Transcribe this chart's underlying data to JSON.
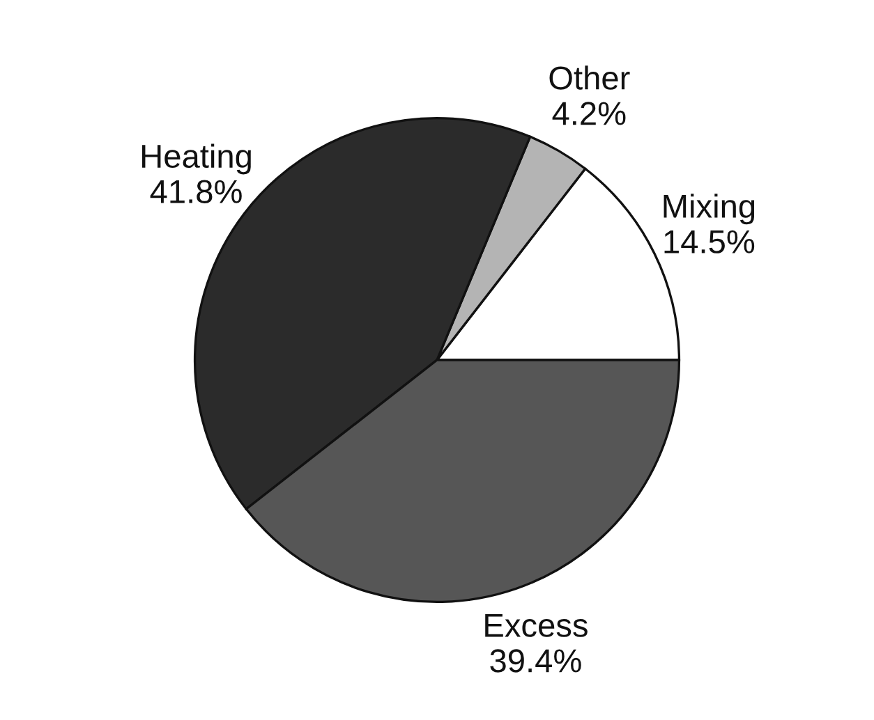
{
  "chart_data": {
    "type": "pie",
    "categories": [
      "Mixing",
      "Other",
      "Heating",
      "Excess"
    ],
    "values": [
      14.5,
      4.2,
      41.8,
      39.4
    ],
    "value_labels": [
      "14.5%",
      "4.2%",
      "41.8%",
      "39.4%"
    ],
    "colors": [
      "#ffffff",
      "#b4b4b4",
      "#2b2b2b",
      "#565656"
    ]
  }
}
